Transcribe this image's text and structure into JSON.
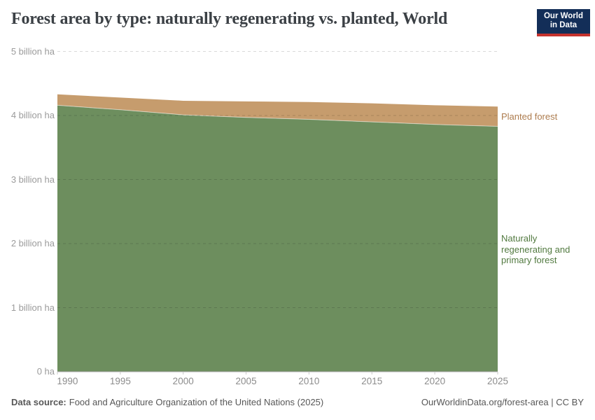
{
  "header": {
    "title": "Forest area by type: naturally regenerating vs. planted, World"
  },
  "logo": {
    "line1": "Our World",
    "line2": "in Data",
    "bg_color": "#132e58",
    "bar_color": "#c5322d"
  },
  "chart_data": {
    "type": "area",
    "stacked": true,
    "title": "Forest area by type: naturally regenerating vs. planted, World",
    "unit": "billion ha",
    "x": [
      1990,
      1995,
      2000,
      2005,
      2010,
      2015,
      2020,
      2025
    ],
    "series": [
      {
        "name": "Naturally regenerating and primary forest",
        "values": [
          4.16,
          4.09,
          4.01,
          3.97,
          3.94,
          3.9,
          3.86,
          3.83
        ],
        "color": "#6d8e5e",
        "label_color": "#527a40"
      },
      {
        "name": "Planted forest",
        "values": [
          0.17,
          0.19,
          0.22,
          0.25,
          0.27,
          0.29,
          0.3,
          0.31
        ],
        "color": "#c69c6d",
        "label_color": "#ad7c4e"
      }
    ],
    "xlabel": "",
    "ylabel": "",
    "ylim": [
      0,
      5
    ],
    "yticks": [
      {
        "value": 0,
        "label": "0 ha"
      },
      {
        "value": 1,
        "label": "1 billion ha"
      },
      {
        "value": 2,
        "label": "2 billion ha"
      },
      {
        "value": 3,
        "label": "3 billion ha"
      },
      {
        "value": 4,
        "label": "4 billion ha"
      },
      {
        "value": 5,
        "label": "5 billion ha"
      }
    ],
    "xticks": [
      "1990",
      "1995",
      "2000",
      "2005",
      "2010",
      "2015",
      "2020",
      "2025"
    ],
    "grid": "horizontal-dashed",
    "legend_position": "right"
  },
  "footer": {
    "source_label": "Data source:",
    "source": "Food and Agriculture Organization of the United Nations (2025)",
    "right": "OurWorldinData.org/forest-area | CC BY"
  }
}
